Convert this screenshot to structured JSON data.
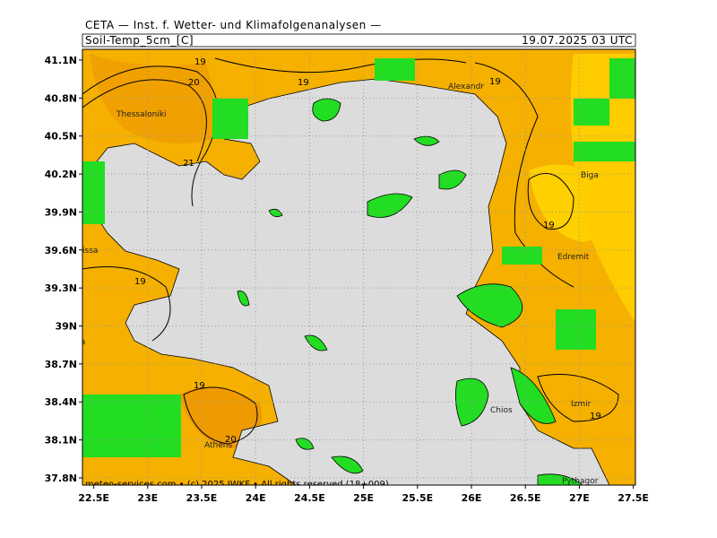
{
  "header": {
    "institute": "CETA — Inst. f. Wetter- und Klimafolgenanalysen —",
    "variable": "Soil-Temp_5cm_[C]",
    "valid_time": "19.07.2025 03 UTC"
  },
  "axes": {
    "lat_labels": [
      "41.1N",
      "40.8N",
      "40.5N",
      "40.2N",
      "39.9N",
      "39.6N",
      "39.3N",
      "39N",
      "38.7N",
      "38.4N",
      "38.1N",
      "37.8N"
    ],
    "lon_labels": [
      "22.5E",
      "23E",
      "23.5E",
      "24E",
      "24.5E",
      "25E",
      "25.5E",
      "26E",
      "26.5E",
      "27E",
      "27.5E"
    ]
  },
  "places": [
    "Thessaloniki",
    "Alexandr",
    "Biga",
    "Edremit",
    "issa",
    "Lamia",
    "Chios",
    "Izmir",
    "Athens",
    "Pythagor"
  ],
  "contour_labels": [
    "19",
    "20",
    "19",
    "19",
    "21",
    "19",
    "19",
    "19",
    "19",
    "20"
  ],
  "footer": "meteo-services.com • (c) 2025 IWKF • All rights reserved (18+009)"
}
